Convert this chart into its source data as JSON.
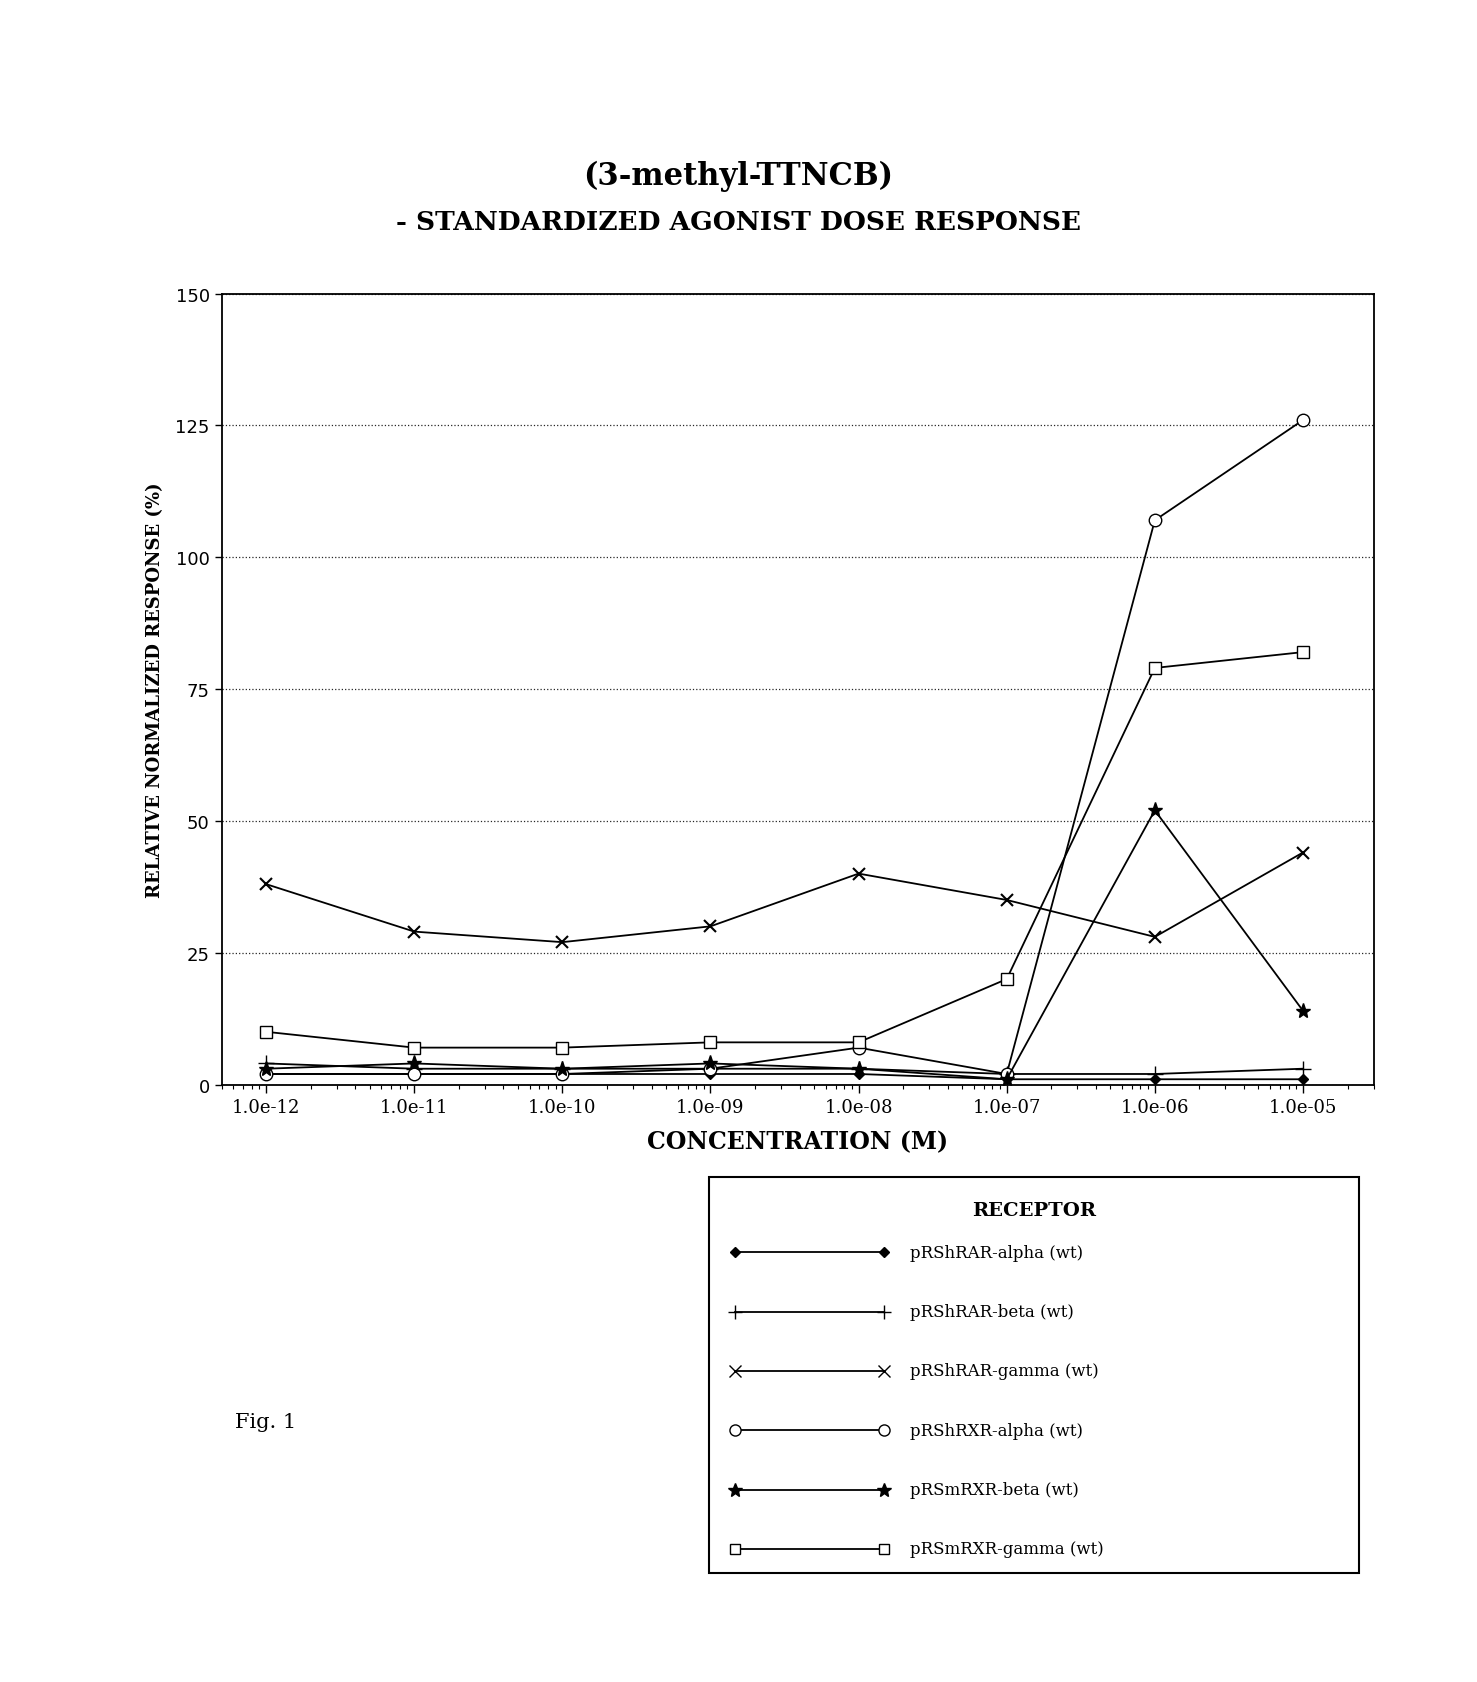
{
  "title_line1": "(3-methyl-TTNCB)",
  "title_line2": "- STANDARDIZED AGONIST DOSE RESPONSE",
  "xlabel": "CONCENTRATION (M)",
  "ylabel": "RELATIVE NORMALIZED RESPONSE (%)",
  "x_values": [
    1e-12,
    1e-11,
    1e-10,
    1e-09,
    1e-08,
    1e-07,
    1e-06,
    1e-05
  ],
  "x_tick_labels": [
    "1.0e-12",
    "1.0e-11",
    "1.0e-10",
    "1.0e-09",
    "1.0e-08",
    "1.0e-07",
    "1.0e-06",
    "1.0e-05"
  ],
  "ylim": [
    0,
    150
  ],
  "yticks": [
    0,
    25,
    50,
    75,
    100,
    125,
    150
  ],
  "series_RAR_alpha": [
    2,
    2,
    2,
    2,
    2,
    1,
    1,
    1
  ],
  "series_RAR_beta": [
    4,
    3,
    3,
    3,
    3,
    2,
    2,
    3
  ],
  "series_RAR_gamma": [
    38,
    29,
    27,
    30,
    40,
    35,
    28,
    44
  ],
  "series_RXR_alpha": [
    2,
    2,
    2,
    3,
    7,
    2,
    107,
    126
  ],
  "series_RXR_beta": [
    3,
    4,
    3,
    4,
    3,
    1,
    52,
    14
  ],
  "series_RXR_gamma": [
    10,
    7,
    7,
    8,
    8,
    20,
    79,
    82
  ],
  "legend_title": "RECEPTOR",
  "legend_labels": [
    "pRShRAR-alpha (wt)",
    "pRShRAR-beta (wt)",
    "pRShRAR-gamma (wt)",
    "pRShRXR-alpha (wt)",
    "pRSmRXR-beta (wt)",
    "pRSmRXR-gamma (wt)"
  ],
  "fig_label": "Fig. 1",
  "title1_fontsize": 22,
  "title2_fontsize": 19,
  "xlabel_fontsize": 17,
  "ylabel_fontsize": 13,
  "tick_fontsize": 13,
  "legend_title_fontsize": 14,
  "legend_label_fontsize": 12,
  "fig_label_fontsize": 15
}
